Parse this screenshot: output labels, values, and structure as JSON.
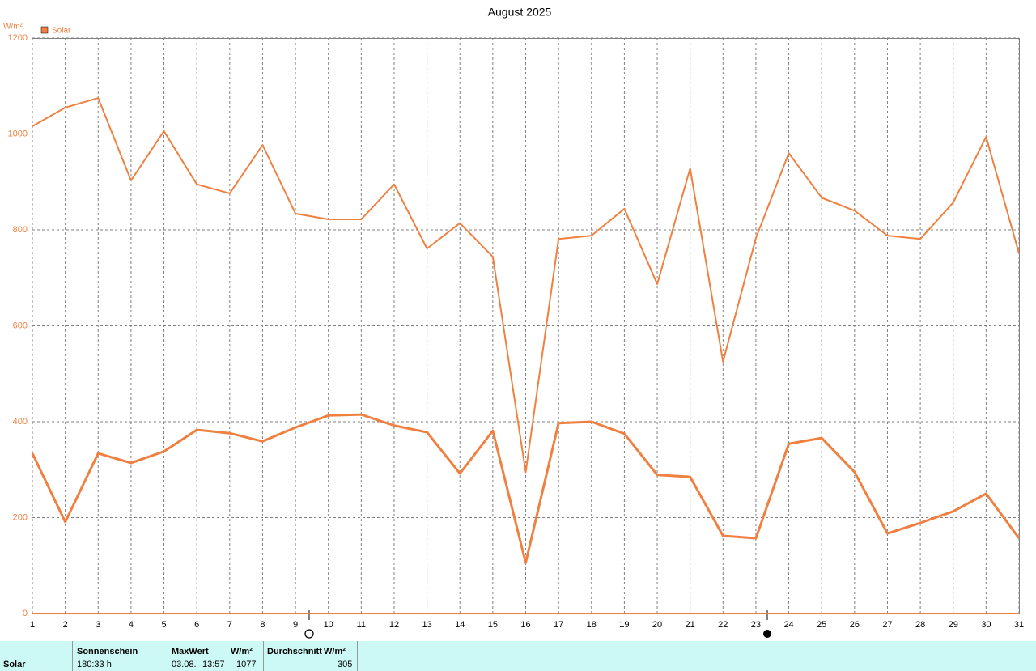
{
  "chart_data": {
    "type": "line",
    "title": "August 2025",
    "y_label": "W/m²",
    "x": [
      1,
      2,
      3,
      4,
      5,
      6,
      7,
      8,
      9,
      10,
      11,
      12,
      13,
      14,
      15,
      16,
      17,
      18,
      19,
      20,
      21,
      22,
      23,
      24,
      25,
      26,
      27,
      28,
      29,
      30,
      31
    ],
    "series": [
      {
        "name": "Solar",
        "color": "#f08040",
        "values": [
          1016,
          1055,
          1075,
          903,
          1006,
          895,
          876,
          977,
          834,
          822,
          822,
          895,
          761,
          814,
          744,
          295,
          781,
          788,
          844,
          687,
          928,
          525,
          783,
          960,
          867,
          840,
          788,
          781,
          857,
          994,
          751
        ]
      },
      {
        "color": "#f08040",
        "values": [
          334,
          191,
          334,
          314,
          338,
          383,
          376,
          359,
          388,
          413,
          415,
          392,
          378,
          292,
          381,
          106,
          397,
          400,
          375,
          289,
          285,
          162,
          157,
          354,
          366,
          295,
          167,
          189,
          213,
          250,
          157
        ]
      }
    ],
    "xlim": [
      1,
      31
    ],
    "xticks": [
      1,
      2,
      3,
      4,
      5,
      6,
      7,
      8,
      9,
      10,
      11,
      12,
      13,
      14,
      15,
      16,
      17,
      18,
      19,
      20,
      21,
      22,
      23,
      24,
      25,
      26,
      27,
      28,
      29,
      30,
      31
    ],
    "ylim": [
      0,
      1200
    ],
    "yticks": [
      0,
      200,
      400,
      600,
      800,
      1000,
      1200
    ],
    "grid": true
  },
  "table": {
    "headers": [
      "Sonnenschein",
      "MaxWert",
      "W/m²",
      "Durchschnitt",
      "W/m²"
    ],
    "rows": [
      [
        "Solar",
        "180:33 h",
        "03.08.",
        "13:57",
        "1077",
        "305"
      ]
    ]
  }
}
